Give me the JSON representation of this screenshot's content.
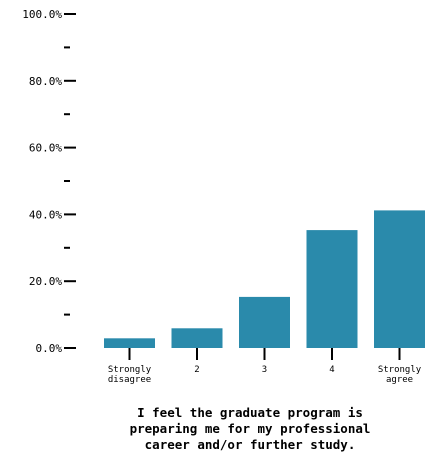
{
  "colors": {
    "bar": "#2a8aab",
    "axis": "#000000"
  },
  "chart_data": {
    "type": "bar",
    "title_lines": [
      "I feel the graduate program is",
      "preparing me for my professional",
      "career and/or further study."
    ],
    "categories": [
      [
        "Strongly",
        "disagree"
      ],
      [
        "2"
      ],
      [
        "3"
      ],
      [
        "4"
      ],
      [
        "Strongly",
        "agree"
      ]
    ],
    "values": [
      2.9,
      5.9,
      15.3,
      35.3,
      41.2
    ],
    "ylim": [
      0,
      100
    ],
    "y_ticks_labeled": [
      {
        "value": 0,
        "label": "0.0%"
      },
      {
        "value": 20,
        "label": "20.0%"
      },
      {
        "value": 40,
        "label": "40.0%"
      },
      {
        "value": 60,
        "label": "60.0%"
      },
      {
        "value": 80,
        "label": "80.0%"
      },
      {
        "value": 100,
        "label": "100.0%"
      }
    ],
    "y_ticks_minor": [
      10,
      30,
      50,
      70,
      90
    ],
    "grid": false,
    "legend": "none"
  }
}
